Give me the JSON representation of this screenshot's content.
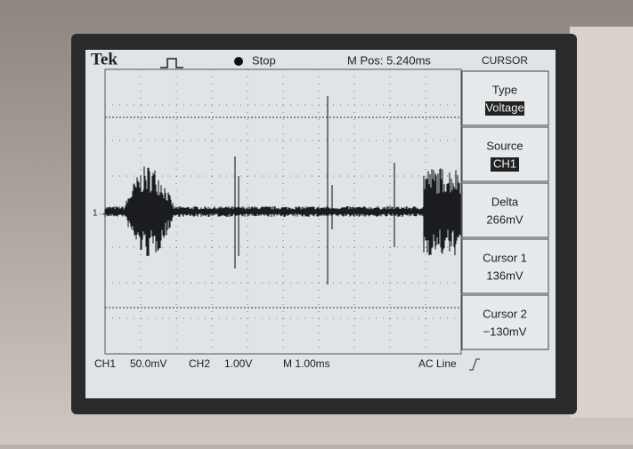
{
  "header": {
    "brand": "Tek",
    "state": "Stop",
    "position": "M Pos: 5.240ms",
    "menu_title": "CURSOR"
  },
  "menu": [
    {
      "label": "Type",
      "value": "Voltage"
    },
    {
      "label": "Source",
      "value": "CH1"
    },
    {
      "label": "Delta",
      "value": "266mV"
    },
    {
      "label": "Cursor 1",
      "value": "136mV"
    },
    {
      "label": "Cursor 2",
      "value": "−130mV"
    }
  ],
  "marker": "1→",
  "footer": {
    "ch1": "CH1",
    "ch1_scale": "50.0mV",
    "ch2": "CH2",
    "ch2_scale": "1.00V",
    "timebase": "M 1.00ms",
    "trigger": "AC Line"
  }
}
